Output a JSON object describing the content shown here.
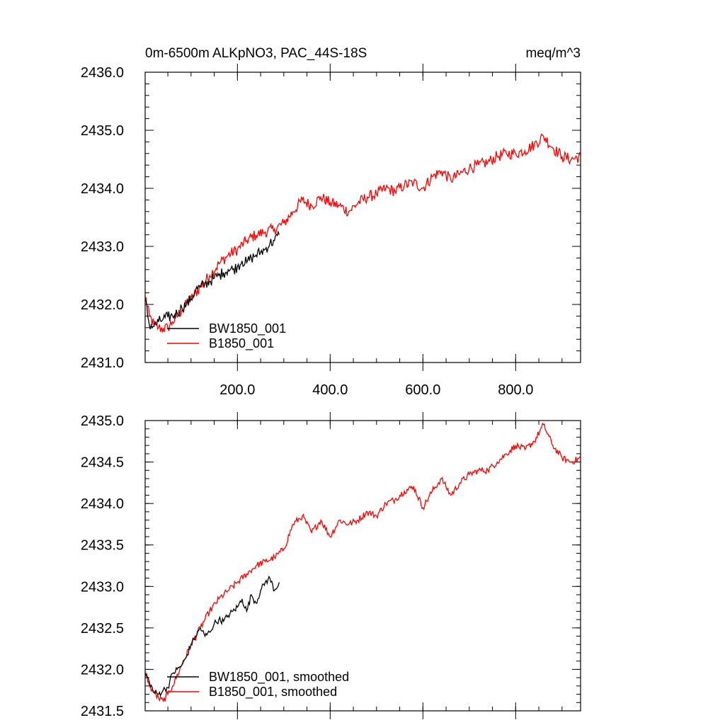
{
  "chart_data": [
    {
      "type": "line",
      "title": "0m-6500m ALKpNO3, PAC_44S-18S",
      "units": "meq/m^3",
      "xlabel": "",
      "ylabel": "",
      "xlim": [
        1,
        940
      ],
      "ylim": [
        2431.0,
        2436.0
      ],
      "x_ticks": [
        200,
        400,
        600,
        800
      ],
      "x_tick_labels": [
        "200.0",
        "400.0",
        "600.0",
        "800.0"
      ],
      "x_minor_step": 50,
      "y_ticks": [
        2431,
        2432,
        2433,
        2434,
        2435,
        2436
      ],
      "y_tick_labels": [
        "2431.0",
        "2432.0",
        "2433.0",
        "2434.0",
        "2435.0",
        "2436.0"
      ],
      "y_minor_step": 0.2,
      "grid": false,
      "legend_position": "bottom-left",
      "noise": 0.1,
      "series": [
        {
          "name": "BW1850_001",
          "color": "#000000",
          "x": [
            1,
            10,
            20,
            30,
            40,
            50,
            60,
            70,
            80,
            90,
            100,
            110,
            120,
            130,
            140,
            150,
            160,
            170,
            180,
            190,
            200,
            210,
            220,
            230,
            240,
            250,
            260,
            270,
            280,
            290
          ],
          "y": [
            2432.1,
            2431.65,
            2431.62,
            2431.7,
            2431.75,
            2431.78,
            2431.8,
            2431.85,
            2431.95,
            2432.0,
            2432.1,
            2432.25,
            2432.3,
            2432.35,
            2432.4,
            2432.45,
            2432.5,
            2432.55,
            2432.6,
            2432.6,
            2432.65,
            2432.75,
            2432.72,
            2432.8,
            2432.85,
            2432.9,
            2432.95,
            2433.05,
            2433.1,
            2433.2
          ]
        },
        {
          "name": "B1850_001",
          "color": "#ff0000",
          "x": [
            1,
            10,
            20,
            30,
            40,
            50,
            60,
            80,
            100,
            120,
            140,
            160,
            180,
            200,
            220,
            240,
            260,
            280,
            300,
            320,
            340,
            360,
            380,
            400,
            420,
            440,
            460,
            480,
            500,
            520,
            540,
            560,
            580,
            600,
            620,
            640,
            660,
            680,
            700,
            720,
            740,
            760,
            780,
            800,
            820,
            840,
            860,
            880,
            900,
            920,
            940
          ],
          "y": [
            2432.15,
            2431.8,
            2431.65,
            2431.6,
            2431.58,
            2431.6,
            2431.7,
            2431.9,
            2432.1,
            2432.3,
            2432.5,
            2432.7,
            2432.85,
            2432.95,
            2433.1,
            2433.2,
            2433.25,
            2433.3,
            2433.4,
            2433.6,
            2433.8,
            2433.7,
            2433.85,
            2433.75,
            2433.7,
            2433.6,
            2433.75,
            2433.85,
            2433.9,
            2434.0,
            2433.95,
            2434.05,
            2434.1,
            2434.0,
            2434.2,
            2434.3,
            2434.15,
            2434.25,
            2434.35,
            2434.4,
            2434.45,
            2434.55,
            2434.6,
            2434.6,
            2434.65,
            2434.75,
            2434.9,
            2434.7,
            2434.55,
            2434.5,
            2434.55
          ]
        }
      ]
    },
    {
      "type": "line",
      "title": "",
      "xlabel": "",
      "ylabel": "",
      "xlim": [
        1,
        940
      ],
      "ylim": [
        2431.5,
        2435.0
      ],
      "x_ticks": [
        200,
        400,
        600,
        800
      ],
      "x_tick_labels": [],
      "x_minor_step": 50,
      "y_ticks": [
        2431.5,
        2432.0,
        2432.5,
        2433.0,
        2433.5,
        2434.0,
        2434.5,
        2435.0
      ],
      "y_tick_labels": [
        "2431.5",
        "2432.0",
        "2432.5",
        "2433.0",
        "2433.5",
        "2434.0",
        "2434.5",
        "2435.0"
      ],
      "y_minor_step": 0.1,
      "grid": false,
      "legend_position": "bottom-left",
      "noise": 0.04,
      "series": [
        {
          "name": "BW1850_001, smoothed",
          "color": "#000000",
          "x": [
            1,
            10,
            20,
            30,
            40,
            50,
            60,
            70,
            80,
            90,
            100,
            110,
            120,
            130,
            140,
            150,
            160,
            170,
            180,
            190,
            200,
            210,
            220,
            230,
            240,
            250,
            260,
            270,
            280,
            290
          ],
          "y": [
            2431.95,
            2431.85,
            2431.72,
            2431.7,
            2431.75,
            2431.78,
            2431.95,
            2432.0,
            2432.05,
            2432.15,
            2432.3,
            2432.4,
            2432.5,
            2432.4,
            2432.45,
            2432.55,
            2432.6,
            2432.58,
            2432.65,
            2432.7,
            2432.75,
            2432.85,
            2432.7,
            2432.9,
            2432.8,
            2432.95,
            2433.05,
            2433.1,
            2432.95,
            2433.05
          ]
        },
        {
          "name": "B1850_001, smoothed",
          "color": "#ff0000",
          "x": [
            1,
            10,
            20,
            30,
            40,
            50,
            60,
            80,
            100,
            120,
            140,
            160,
            180,
            200,
            220,
            240,
            260,
            280,
            300,
            320,
            340,
            360,
            380,
            400,
            420,
            440,
            460,
            480,
            500,
            520,
            540,
            560,
            580,
            600,
            620,
            640,
            660,
            680,
            700,
            720,
            740,
            760,
            780,
            800,
            820,
            840,
            860,
            880,
            900,
            920,
            940
          ],
          "y": [
            2432.0,
            2431.8,
            2431.72,
            2431.65,
            2431.62,
            2431.7,
            2431.8,
            2432.05,
            2432.3,
            2432.5,
            2432.7,
            2432.85,
            2432.95,
            2433.05,
            2433.15,
            2433.25,
            2433.3,
            2433.35,
            2433.45,
            2433.75,
            2433.85,
            2433.65,
            2433.8,
            2433.6,
            2433.8,
            2433.75,
            2433.8,
            2433.9,
            2433.85,
            2434.0,
            2434.05,
            2434.15,
            2434.2,
            2433.95,
            2434.15,
            2434.3,
            2434.1,
            2434.25,
            2434.35,
            2434.4,
            2434.4,
            2434.5,
            2434.6,
            2434.7,
            2434.65,
            2434.75,
            2434.95,
            2434.7,
            2434.55,
            2434.5,
            2434.55
          ]
        }
      ]
    }
  ]
}
